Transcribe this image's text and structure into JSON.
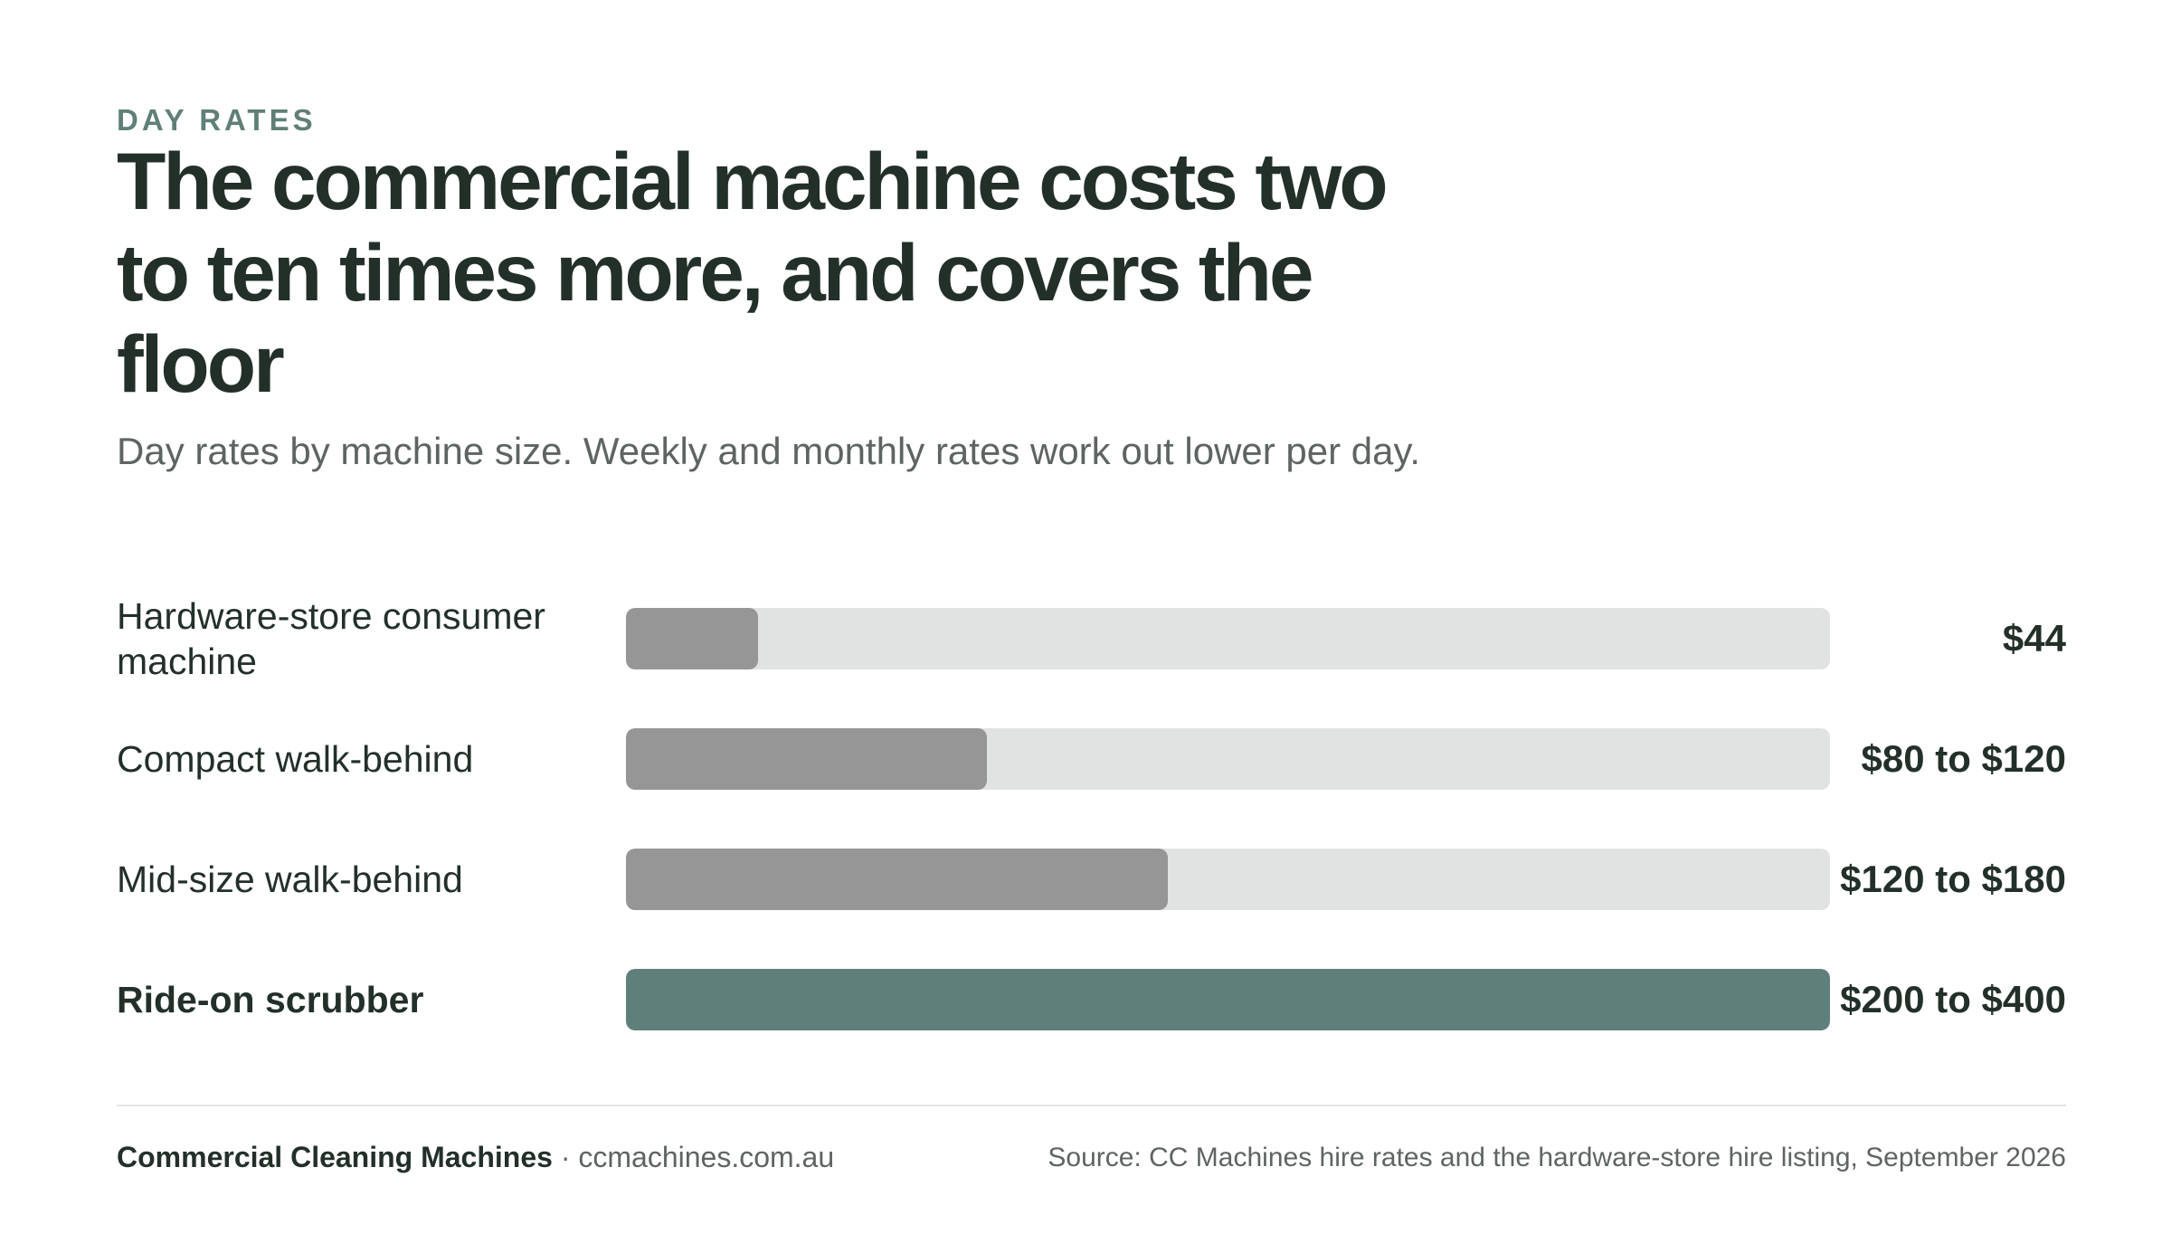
{
  "header": {
    "eyebrow": "DAY RATES",
    "title": "The commercial machine costs two to ten times more, and covers the floor",
    "subtitle": "Day rates by machine size. Weekly and monthly rates work out lower per day."
  },
  "colors": {
    "bar_default": "#959695",
    "bar_highlight": "#5f7f7a",
    "track": "#e0e3e2",
    "text": "#233029",
    "accent": "#5f7f77"
  },
  "chart_data": {
    "type": "bar",
    "orientation": "horizontal",
    "categories": [
      "Hardware-store consumer machine",
      "Compact walk-behind",
      "Mid-size walk-behind",
      "Ride-on scrubber"
    ],
    "values": [
      44,
      120,
      180,
      400
    ],
    "value_labels": [
      "$44",
      "$80 to $120",
      "$120 to $180",
      "$200 to $400"
    ],
    "highlight": [
      false,
      false,
      false,
      true
    ],
    "xlim": [
      0,
      400
    ],
    "grid": false
  },
  "footer": {
    "brand": "Commercial Cleaning Machines",
    "separator": "·",
    "site": "ccmachines.com.au",
    "source": "Source: CC Machines hire rates and the hardware-store hire listing, September 2026"
  }
}
